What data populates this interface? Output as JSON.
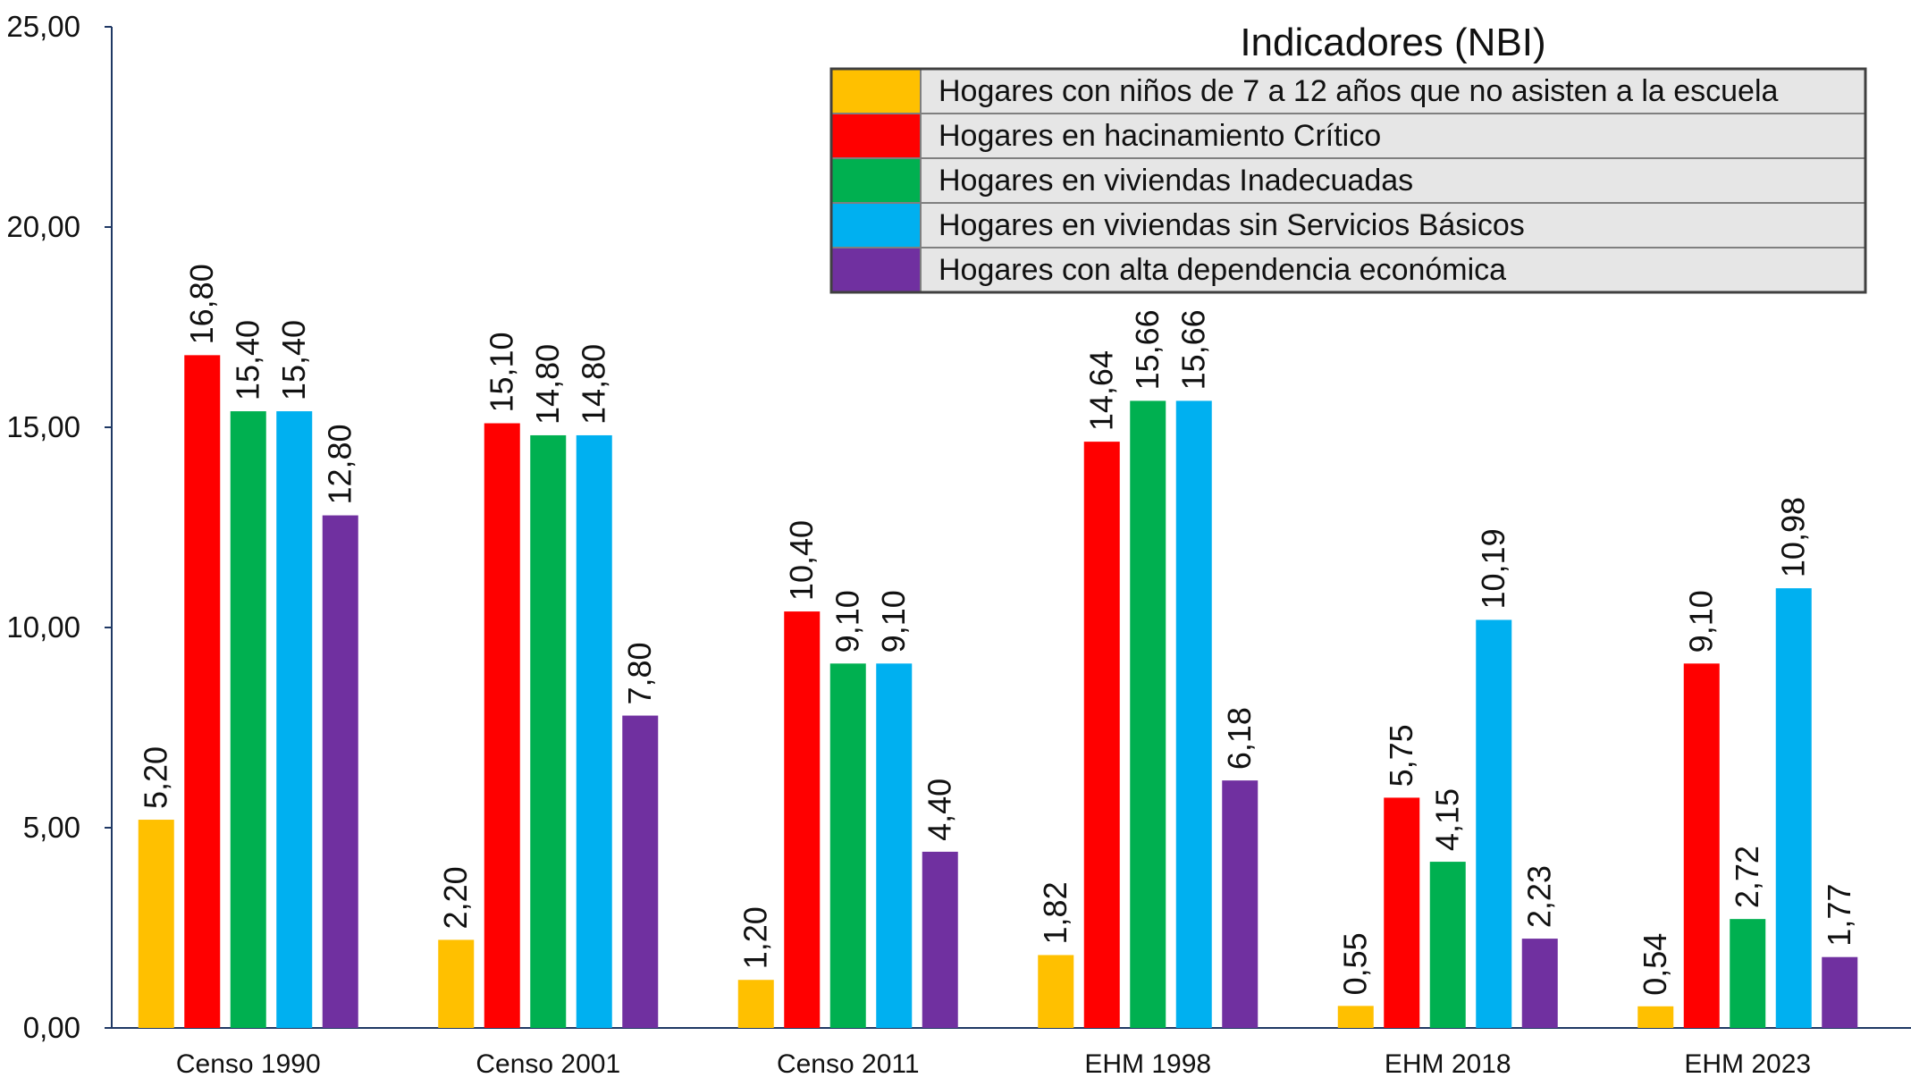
{
  "chart_data": {
    "type": "bar",
    "categories": [
      "Censo 1990",
      "Censo 2001",
      "Censo 2011",
      "EHM 1998",
      "EHM 2018",
      "EHM 2023"
    ],
    "ylim": [
      0,
      25
    ],
    "yticks": [
      "0,00",
      "5,00",
      "10,00",
      "15,00",
      "20,00",
      "25,00"
    ],
    "grid": false,
    "legend_position": "top-right",
    "legend_title": "Indicadores (NBI)",
    "series": [
      {
        "name": "Hogares con niños de 7 a 12 años que no asisten a la escuela",
        "color": "#FFC000",
        "values": [
          5.2,
          2.2,
          1.2,
          1.82,
          0.55,
          0.54
        ],
        "labels": [
          "5,20",
          "2,20",
          "1,20",
          "1,82",
          "0,55",
          "0,54"
        ]
      },
      {
        "name": "Hogares en hacinamiento Crítico",
        "color": "#FF0000",
        "values": [
          16.8,
          15.1,
          10.4,
          14.64,
          5.75,
          9.1
        ],
        "labels": [
          "16,80",
          "15,10",
          "10,40",
          "14,64",
          "5,75",
          "9,10"
        ]
      },
      {
        "name": "Hogares en viviendas Inadecuadas",
        "color": "#00B050",
        "values": [
          15.4,
          14.8,
          9.1,
          15.66,
          4.15,
          2.72
        ],
        "labels": [
          "15,40",
          "14,80",
          "9,10",
          "15,66",
          "4,15",
          "2,72"
        ]
      },
      {
        "name": "Hogares en viviendas sin Servicios Básicos",
        "color": "#00B0F0",
        "values": [
          15.4,
          14.8,
          9.1,
          15.66,
          10.19,
          10.98
        ],
        "labels": [
          "15,40",
          "14,80",
          "9,10",
          "15,66",
          "10,19",
          "10,98"
        ]
      },
      {
        "name": "Hogares con alta dependencia económica",
        "color": "#7030A0",
        "values": [
          12.8,
          7.8,
          4.4,
          6.18,
          2.23,
          1.77
        ],
        "labels": [
          "12,80",
          "7,80",
          "4,40",
          "6,18",
          "2,23",
          "1,77"
        ]
      }
    ]
  }
}
